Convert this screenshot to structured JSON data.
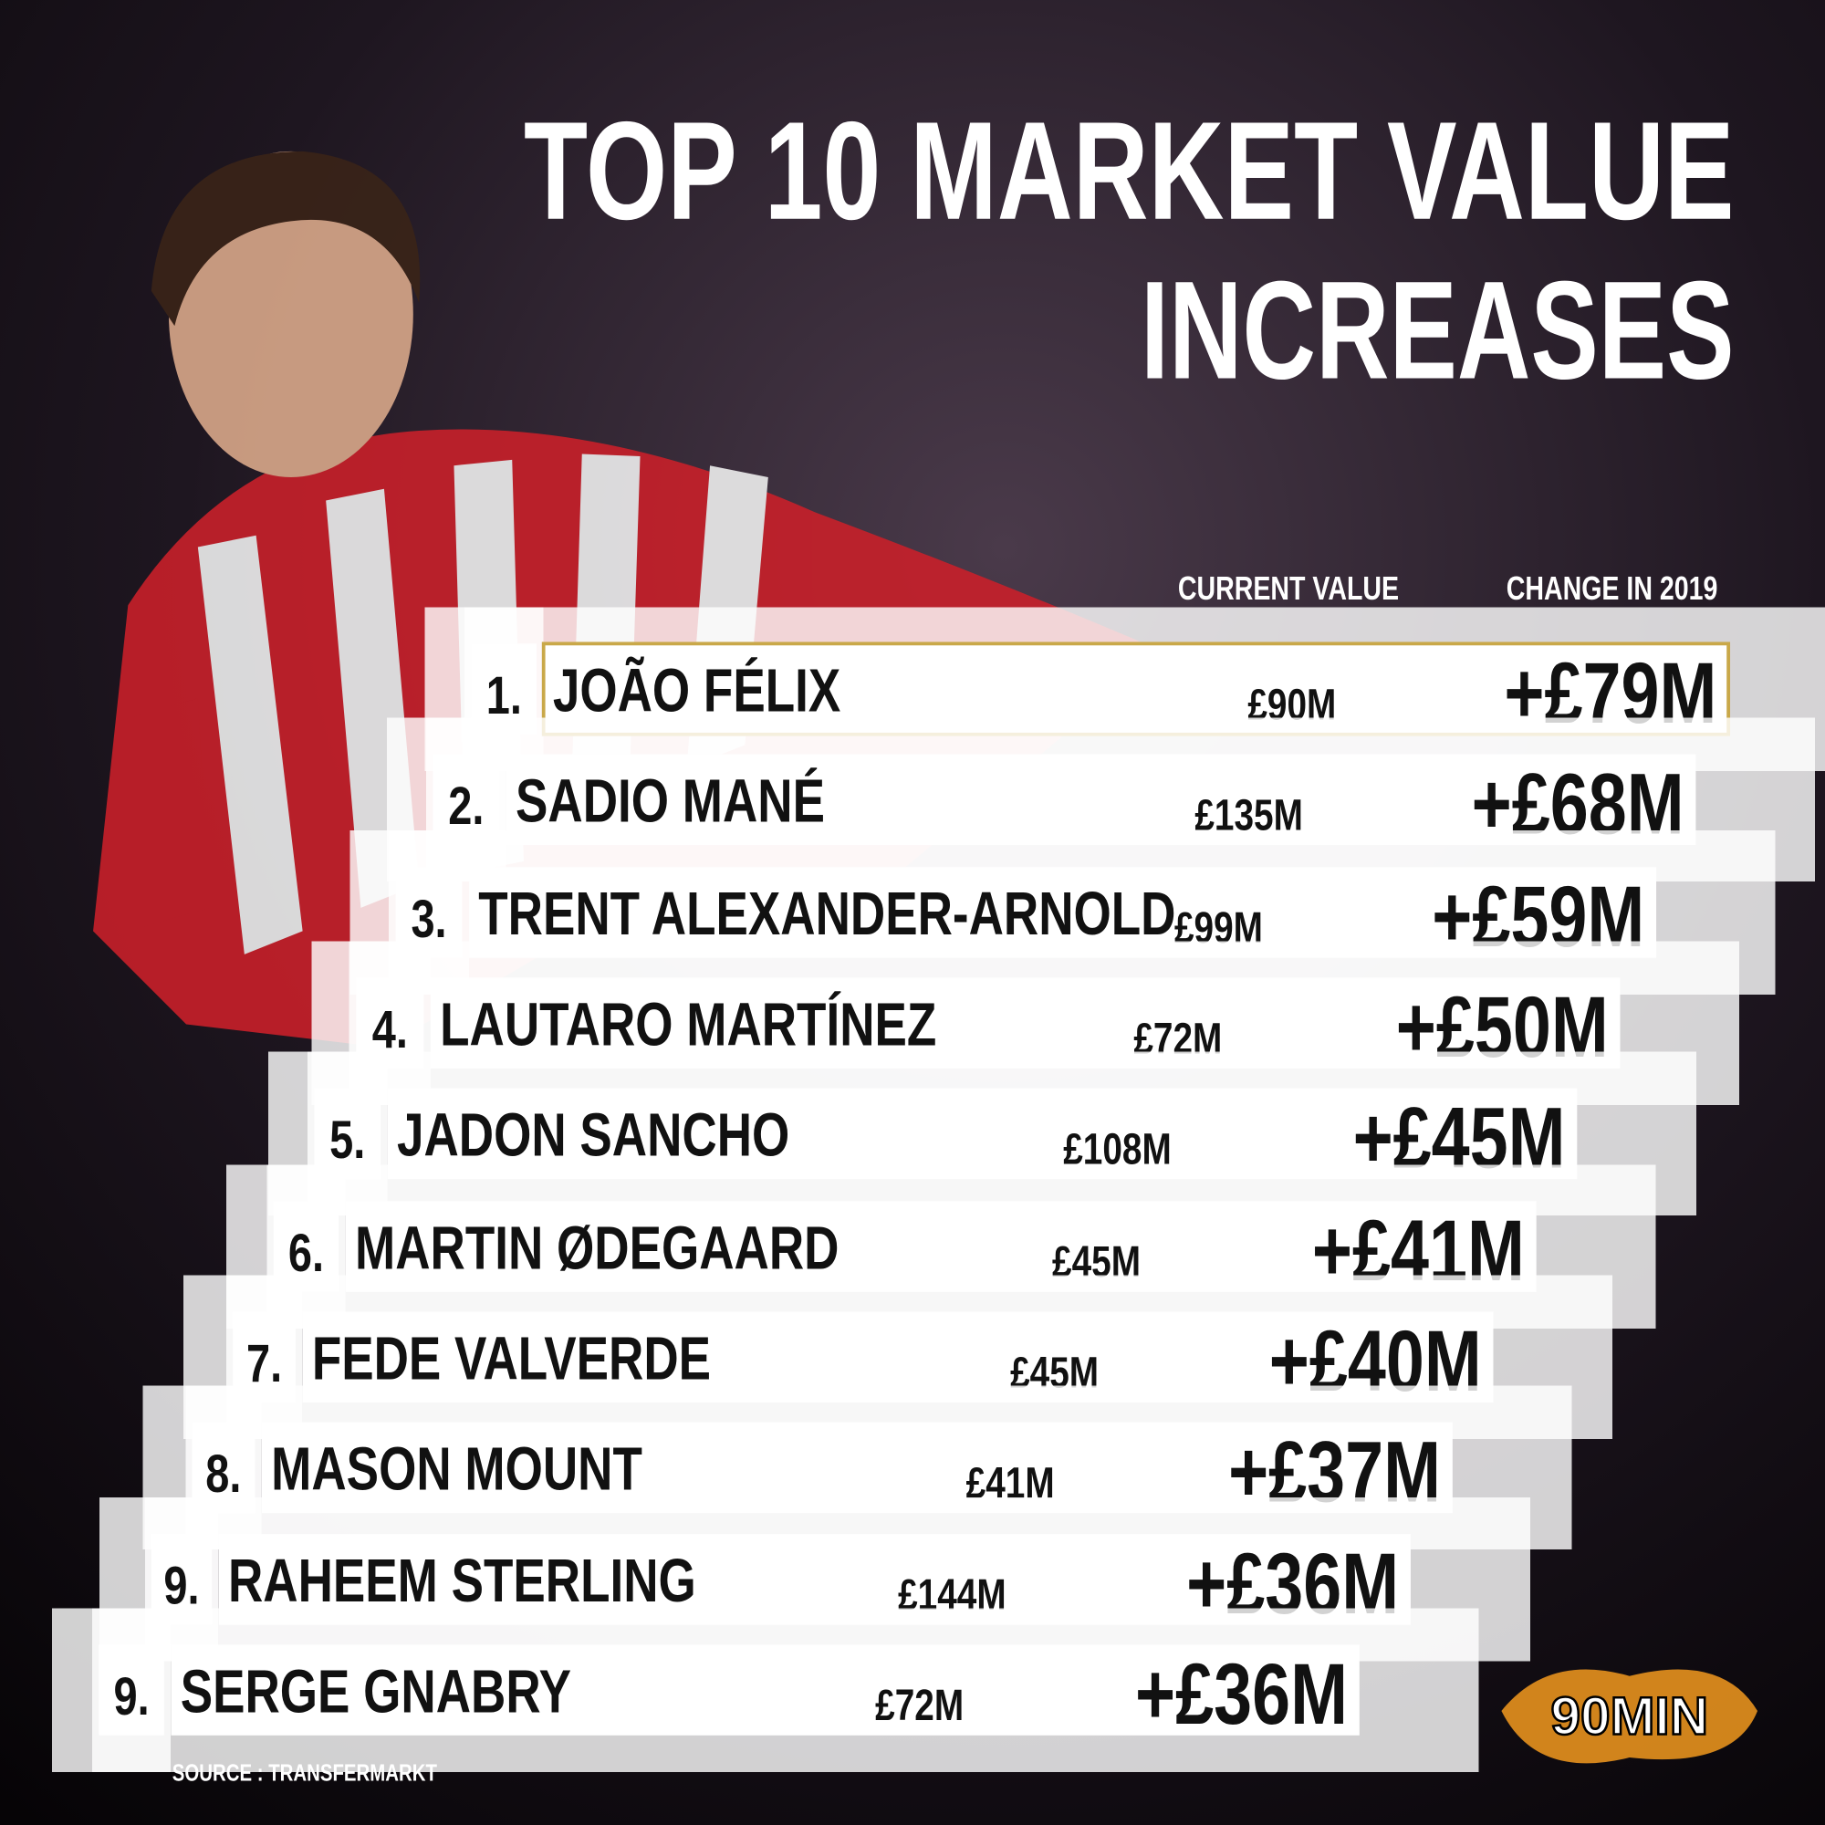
{
  "header": {
    "title_lines": [
      "TOP 10 MARKET VALUE",
      "INCREASES"
    ]
  },
  "columns": {
    "current": "CURRENT VALUE",
    "change": "CHANGE IN 2019"
  },
  "rows": [
    {
      "rank": "1.",
      "name": "JOÃO FÉLIX",
      "current": "£90M",
      "change": "+£79M"
    },
    {
      "rank": "2.",
      "name": "SADIO MANÉ",
      "current": "£135M",
      "change": "+£68M"
    },
    {
      "rank": "3.",
      "name": "TRENT ALEXANDER-ARNOLD",
      "current": "£99M",
      "change": "+£59M"
    },
    {
      "rank": "4.",
      "name": "LAUTARO MARTÍNEZ",
      "current": "£72M",
      "change": "+£50M"
    },
    {
      "rank": "5.",
      "name": "JADON SANCHO",
      "current": "£108M",
      "change": "+£45M"
    },
    {
      "rank": "6.",
      "name": "MARTIN ØDEGAARD",
      "current": "£45M",
      "change": "+£41M"
    },
    {
      "rank": "7.",
      "name": "FEDE VALVERDE",
      "current": "£45M",
      "change": "+£40M"
    },
    {
      "rank": "8.",
      "name": "MASON MOUNT",
      "current": "£41M",
      "change": "+£37M"
    },
    {
      "rank": "9.",
      "name": "RAHEEM STERLING",
      "current": "£144M",
      "change": "+£36M"
    },
    {
      "rank": "9.",
      "name": "SERGE GNABRY",
      "current": "£72M",
      "change": "+£36M"
    }
  ],
  "source": "SOURCE : TRANSFERMARKT",
  "logo": "90MIN"
}
